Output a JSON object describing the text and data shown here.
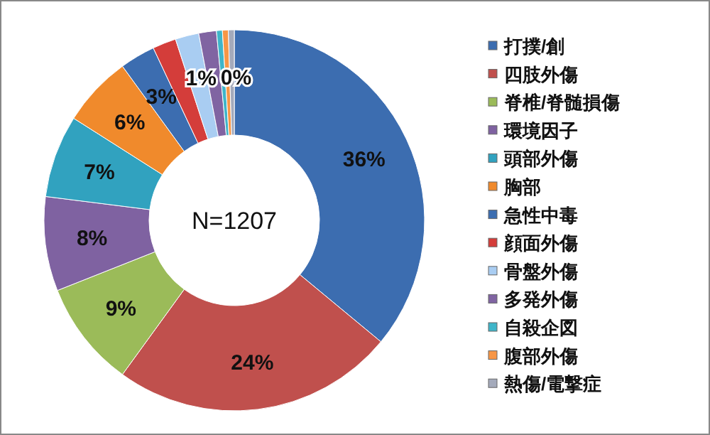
{
  "chart_data": {
    "type": "donut",
    "annotations": [
      "N=1207"
    ],
    "categories": [
      "打撲/創",
      "四肢外傷",
      "脊椎/脊髄損傷",
      "環境因子",
      "頭部外傷",
      "胸部",
      "急性中毒",
      "顔面外傷",
      "骨盤外傷",
      "多発外傷",
      "自殺企図",
      "腹部外傷",
      "熱傷/電撃症"
    ],
    "values": [
      36,
      24,
      9,
      8,
      7,
      6,
      3,
      2,
      2,
      1.5,
      0.5,
      0.5,
      0.5
    ],
    "value_labels": [
      "36%",
      "24%",
      "9%",
      "8%",
      "7%",
      "6%",
      "3%",
      null,
      null,
      "1%",
      "0%",
      null,
      null
    ],
    "colors": [
      "#3c6db0",
      "#c0504d",
      "#9bbb59",
      "#7f62a1",
      "#31a2bf",
      "#f08a2c",
      "#3c6db0",
      "#d43d3a",
      "#a9cdf2",
      "#8064a2",
      "#3fb5c9",
      "#f79646",
      "#a4aabb"
    ],
    "legend": "right"
  }
}
